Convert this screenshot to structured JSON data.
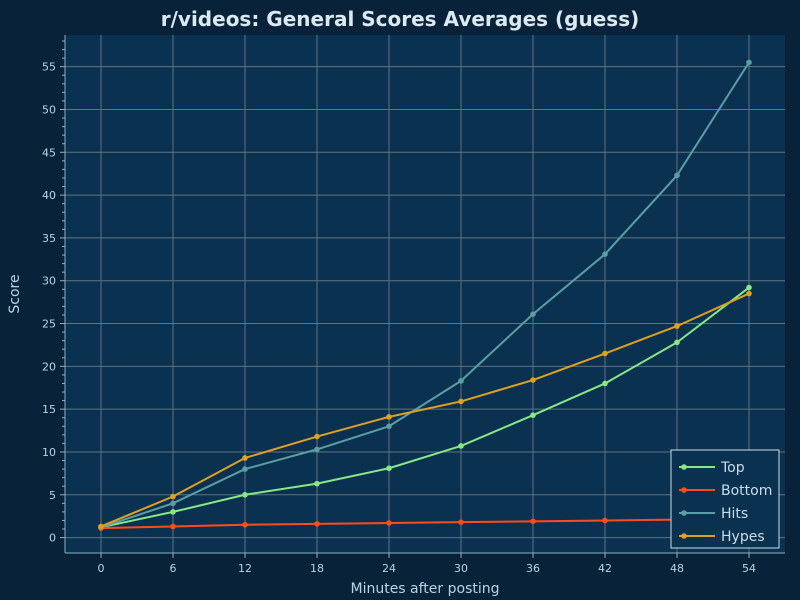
{
  "chart_data": {
    "type": "line",
    "title": "r/videos: General Scores Averages (guess)",
    "xlabel": "Minutes after posting",
    "ylabel": "Score",
    "x": [
      0,
      6,
      12,
      18,
      24,
      30,
      36,
      42,
      48,
      54
    ],
    "xlim": [
      -3,
      57
    ],
    "ylim": [
      -1.8,
      58.7
    ],
    "xticks": [
      0,
      6,
      12,
      18,
      24,
      30,
      36,
      42,
      48,
      54
    ],
    "yticks": [
      0,
      5,
      10,
      15,
      20,
      25,
      30,
      35,
      40,
      45,
      50,
      55
    ],
    "grid": true,
    "legend_position": "bottom-right",
    "series": [
      {
        "name": "Top",
        "color": "#86e886",
        "values": [
          1.2,
          3.0,
          5.0,
          6.3,
          8.1,
          10.7,
          14.3,
          18.0,
          22.8,
          29.2
        ]
      },
      {
        "name": "Bottom",
        "color": "#ff4c1a",
        "values": [
          1.1,
          1.3,
          1.5,
          1.6,
          1.7,
          1.8,
          1.9,
          2.0,
          2.1,
          2.2
        ]
      },
      {
        "name": "Hits",
        "color": "#5b9ea4",
        "values": [
          1.2,
          4.0,
          8.0,
          10.3,
          13.0,
          18.3,
          26.1,
          33.1,
          42.3,
          55.5
        ]
      },
      {
        "name": "Hypes",
        "color": "#e0a020",
        "values": [
          1.3,
          4.8,
          9.3,
          11.8,
          14.1,
          15.9,
          18.4,
          21.5,
          24.7,
          28.5
        ]
      }
    ]
  }
}
